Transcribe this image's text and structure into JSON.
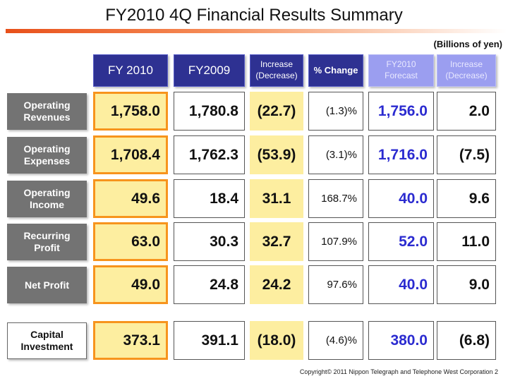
{
  "title": "FY2010 4Q Financial Results Summary",
  "unit": "(Billions of yen)",
  "headers": [
    "FY 2010",
    "FY2009",
    "Increase\n(Decrease)",
    "% Change",
    "FY2010\nForecast",
    "Increase\n(Decrease)"
  ],
  "rows": [
    {
      "label": "Operating Revenues",
      "fy2010": "1,758.0",
      "fy2009": "1,780.8",
      "increase": "(22.7)",
      "pct": "(1.3)%",
      "forecast": "1,756.0",
      "vs_forecast": "2.0"
    },
    {
      "label": "Operating Expenses",
      "fy2010": "1,708.4",
      "fy2009": "1,762.3",
      "increase": "(53.9)",
      "pct": "(3.1)%",
      "forecast": "1,716.0",
      "vs_forecast": "(7.5)"
    },
    {
      "label": "Operating Income",
      "fy2010": "49.6",
      "fy2009": "18.4",
      "increase": "31.1",
      "pct": "168.7%",
      "forecast": "40.0",
      "vs_forecast": "9.6"
    },
    {
      "label": "Recurring Profit",
      "fy2010": "63.0",
      "fy2009": "30.3",
      "increase": "32.7",
      "pct": "107.9%",
      "forecast": "52.0",
      "vs_forecast": "11.0"
    },
    {
      "label": "Net Profit",
      "fy2010": "49.0",
      "fy2009": "24.8",
      "increase": "24.2",
      "pct": "97.6%",
      "forecast": "40.0",
      "vs_forecast": "9.0"
    },
    {
      "label": "Capital Investment",
      "fy2010": "373.1",
      "fy2009": "391.1",
      "increase": "(18.0)",
      "pct": "(4.6)%",
      "forecast": "380.0",
      "vs_forecast": "(6.8)"
    }
  ],
  "footer": "Copyright© 2011 Nippon Telegraph and Telephone West Corporation   2",
  "colors": {
    "header": "#2e3192",
    "header_light": "#9b9ef0",
    "highlight": "#fdeea0",
    "highlight_border": "#f7941d",
    "forecast_text": "#2b2bd0",
    "title_bar": "#e8501a"
  }
}
